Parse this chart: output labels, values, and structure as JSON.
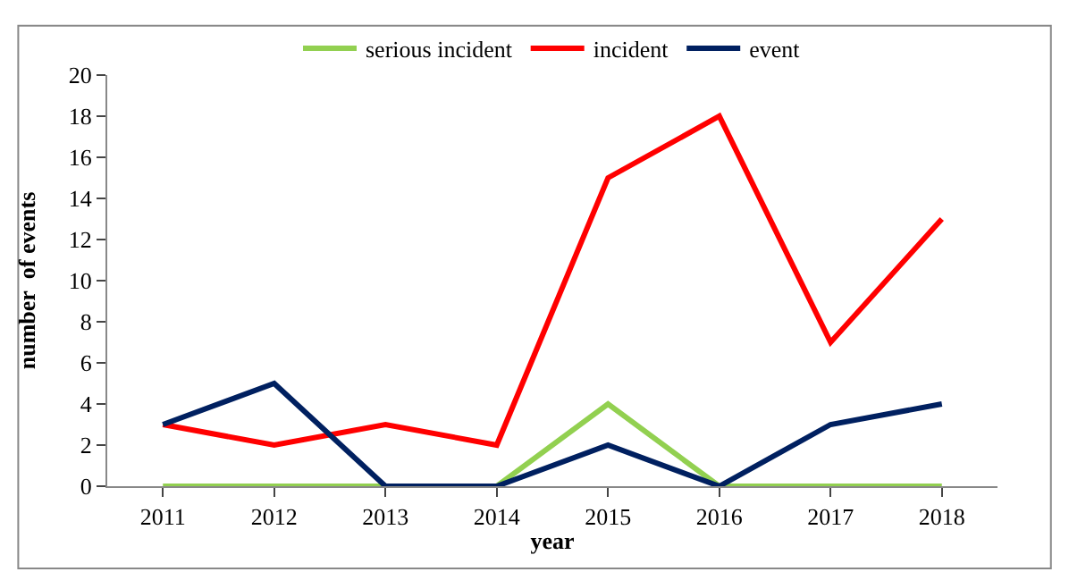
{
  "chart_data": {
    "type": "line",
    "xlabel": "year",
    "ylabel": "number  of events",
    "categories": [
      "2011",
      "2012",
      "2013",
      "2014",
      "2015",
      "2016",
      "2017",
      "2018"
    ],
    "series": [
      {
        "name": "serious incident",
        "color": "#92d050",
        "values": [
          0,
          0,
          0,
          0,
          4,
          0,
          0,
          0
        ]
      },
      {
        "name": "incident",
        "color": "#ff0000",
        "values": [
          3,
          2,
          3,
          2,
          15,
          18,
          7,
          13
        ]
      },
      {
        "name": "event",
        "color": "#002060",
        "values": [
          3,
          5,
          0,
          0,
          2,
          0,
          3,
          4
        ]
      }
    ],
    "ylim": [
      0,
      20
    ],
    "yticks": [
      0,
      2,
      4,
      6,
      8,
      10,
      12,
      14,
      16,
      18,
      20
    ],
    "grid": false,
    "legend": "top",
    "marker": "none",
    "line_style": "solid"
  }
}
